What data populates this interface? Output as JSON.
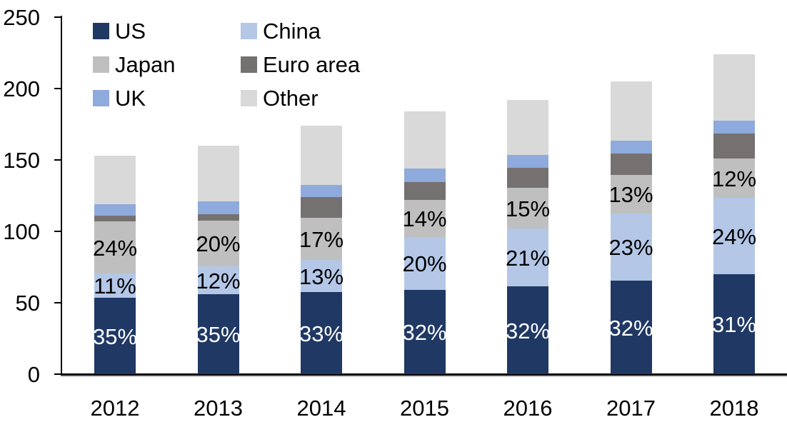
{
  "chart_data": {
    "type": "bar",
    "variant": "stacked",
    "title": "",
    "xlabel": "",
    "ylabel": "",
    "ylim": [
      0,
      250
    ],
    "yticks": [
      0,
      50,
      100,
      150,
      200,
      250
    ],
    "grid": false,
    "categories": [
      "2012",
      "2013",
      "2014",
      "2015",
      "2016",
      "2017",
      "2018"
    ],
    "series": [
      {
        "name": "US",
        "color": "#1F3864",
        "values": [
          53.5,
          56,
          57.5,
          59,
          61.5,
          65.5,
          70
        ],
        "labels": [
          "35%",
          "35%",
          "33%",
          "32%",
          "32%",
          "32%",
          "31%"
        ],
        "label_color": "#FFFFFF"
      },
      {
        "name": "China",
        "color": "#B4C7E7",
        "values": [
          17,
          19.5,
          22.5,
          37,
          40.5,
          47,
          53.5
        ],
        "labels": [
          "11%",
          "12%",
          "13%",
          "20%",
          "21%",
          "23%",
          "24%"
        ],
        "label_color": "#000000"
      },
      {
        "name": "Japan",
        "color": "#BFBFBF",
        "values": [
          36.5,
          32,
          29.5,
          26,
          28.5,
          27,
          27.5
        ],
        "labels": [
          "24%",
          "20%",
          "17%",
          "14%",
          "15%",
          "13%",
          "12%"
        ],
        "label_color": "#000000"
      },
      {
        "name": "Euro area",
        "color": "#767171",
        "values": [
          4,
          4.5,
          14.5,
          12.5,
          14,
          15,
          17.5
        ],
        "labels": null,
        "label_color": null
      },
      {
        "name": "UK",
        "color": "#8FAADC",
        "values": [
          8,
          9,
          8.5,
          9.5,
          9,
          9,
          9
        ],
        "labels": null,
        "label_color": null
      },
      {
        "name": "Other",
        "color": "#D9D9D9",
        "values": [
          34,
          39,
          41.5,
          40,
          38.5,
          41.5,
          46.5
        ],
        "labels": null,
        "label_color": null
      }
    ],
    "totals": [
      153,
      160,
      174,
      184,
      192,
      205,
      224
    ],
    "legend": {
      "position": "top-left",
      "columns": 2,
      "items": [
        "US",
        "China",
        "Japan",
        "Euro area",
        "UK",
        "Other"
      ]
    },
    "axis_color": "#000000",
    "text_color": "#000000"
  }
}
